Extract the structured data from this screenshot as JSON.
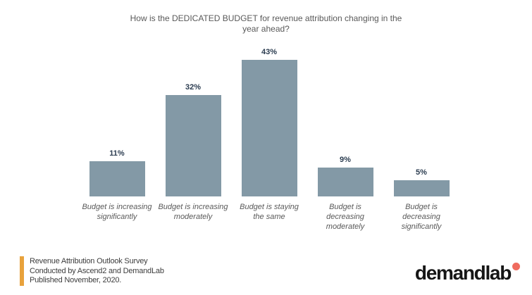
{
  "title_lines": [
    "How is the DEDICATED BUDGET for revenue attribution changing in the",
    "year ahead?"
  ],
  "chart_data": {
    "type": "bar",
    "title": "How is the DEDICATED BUDGET for revenue attribution changing in the year ahead?",
    "categories": [
      "Budget is increasing significantly",
      "Budget is increasing moderately",
      "Budget is staying the same",
      "Budget is decreasing moderately",
      "Budget is decreasing significantly"
    ],
    "values": [
      11,
      32,
      43,
      9,
      5
    ],
    "value_labels": [
      "11%",
      "32%",
      "43%",
      "9%",
      "5%"
    ],
    "xlabel": "",
    "ylabel": "",
    "ylim": [
      0,
      45
    ],
    "grid": false,
    "legend": false,
    "bar_color": "#8399a6",
    "value_label_color": "#2b3c50",
    "axis_label_color": "#595959"
  },
  "footer": {
    "source_lines": [
      "Revenue Attribution Outlook Survey",
      "Conducted by Ascend2 and DemandLab",
      "Published November, 2020."
    ],
    "accent_color": "#e8a23c"
  },
  "logo": {
    "text": "demandlab",
    "dot_color": "#ef6b5e"
  }
}
